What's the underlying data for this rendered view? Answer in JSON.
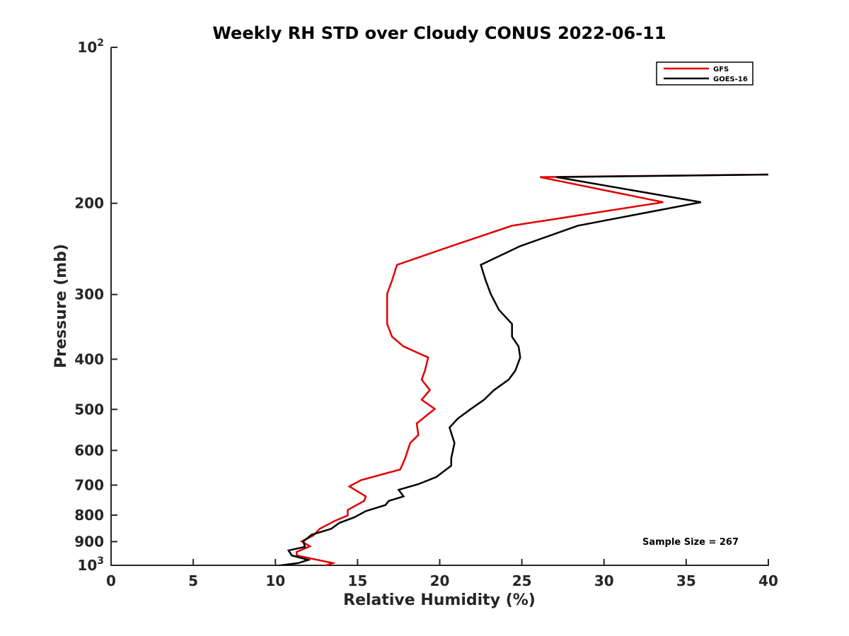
{
  "chart_data": {
    "type": "line",
    "title": "Weekly RH STD over Cloudy CONUS 2022-06-11",
    "xlabel": "Relative Humidity (%)",
    "ylabel": "Pressure (mb)",
    "xlim": [
      0,
      40
    ],
    "ylim": [
      100,
      1000
    ],
    "y_scale": "log",
    "y_reversed": true,
    "x_ticks": [
      0,
      5,
      10,
      15,
      20,
      25,
      30,
      35,
      40
    ],
    "y_ticks": [
      {
        "value": 100,
        "base": "10",
        "exp": "2"
      },
      {
        "value": 200,
        "label": "200"
      },
      {
        "value": 300,
        "label": "300"
      },
      {
        "value": 400,
        "label": "400"
      },
      {
        "value": 500,
        "label": "500"
      },
      {
        "value": 600,
        "label": "600"
      },
      {
        "value": 700,
        "label": "700"
      },
      {
        "value": 800,
        "label": "800"
      },
      {
        "value": 900,
        "label": "900"
      },
      {
        "value": 1000,
        "base": "10",
        "exp": "3"
      }
    ],
    "grid": false,
    "legend_position": "top-right",
    "annotation": "Sample Size = 267",
    "series": [
      {
        "name": "GFS",
        "color": "#e00000",
        "points": [
          [
            40.0,
            176
          ],
          [
            26.1,
            178
          ],
          [
            33.6,
            199
          ],
          [
            24.4,
            221
          ],
          [
            20.7,
            242
          ],
          [
            17.4,
            263
          ],
          [
            17.1,
            282
          ],
          [
            16.8,
            299
          ],
          [
            16.8,
            321
          ],
          [
            16.8,
            342
          ],
          [
            17.1,
            362
          ],
          [
            17.8,
            378
          ],
          [
            19.3,
            397
          ],
          [
            19.1,
            421
          ],
          [
            18.9,
            438
          ],
          [
            19.4,
            459
          ],
          [
            18.9,
            479
          ],
          [
            19.7,
            499
          ],
          [
            18.6,
            532
          ],
          [
            18.7,
            560
          ],
          [
            18.2,
            581
          ],
          [
            17.9,
            621
          ],
          [
            17.6,
            653
          ],
          [
            15.2,
            685
          ],
          [
            14.5,
            704
          ],
          [
            15.5,
            736
          ],
          [
            15.4,
            751
          ],
          [
            14.4,
            782
          ],
          [
            14.4,
            801
          ],
          [
            13.6,
            821
          ],
          [
            12.7,
            850
          ],
          [
            12.3,
            876
          ],
          [
            11.6,
            899
          ],
          [
            12.1,
            919
          ],
          [
            11.3,
            942
          ],
          [
            11.3,
            957
          ],
          [
            12.1,
            969
          ],
          [
            13.5,
            990
          ],
          [
            12.9,
            1005
          ]
        ]
      },
      {
        "name": "GOES-16",
        "color": "#000000",
        "points": [
          [
            40.0,
            176
          ],
          [
            27.1,
            178
          ],
          [
            35.9,
            199
          ],
          [
            28.4,
            221
          ],
          [
            24.9,
            242
          ],
          [
            22.5,
            263
          ],
          [
            22.8,
            282
          ],
          [
            23.1,
            299
          ],
          [
            23.6,
            321
          ],
          [
            24.4,
            342
          ],
          [
            24.4,
            362
          ],
          [
            24.8,
            378
          ],
          [
            24.9,
            397
          ],
          [
            24.6,
            421
          ],
          [
            24.2,
            438
          ],
          [
            23.3,
            459
          ],
          [
            22.7,
            479
          ],
          [
            21.9,
            499
          ],
          [
            21.1,
            521
          ],
          [
            20.6,
            542
          ],
          [
            20.9,
            581
          ],
          [
            20.7,
            621
          ],
          [
            20.7,
            642
          ],
          [
            19.8,
            675
          ],
          [
            18.7,
            697
          ],
          [
            17.5,
            715
          ],
          [
            17.8,
            736
          ],
          [
            16.9,
            751
          ],
          [
            16.7,
            765
          ],
          [
            15.5,
            786
          ],
          [
            14.8,
            808
          ],
          [
            13.9,
            828
          ],
          [
            13.4,
            850
          ],
          [
            12.2,
            873
          ],
          [
            11.7,
            899
          ],
          [
            11.8,
            921
          ],
          [
            10.8,
            936
          ],
          [
            11.0,
            957
          ],
          [
            12.0,
            976
          ],
          [
            11.4,
            990
          ],
          [
            9.8,
            1005
          ]
        ]
      }
    ]
  }
}
